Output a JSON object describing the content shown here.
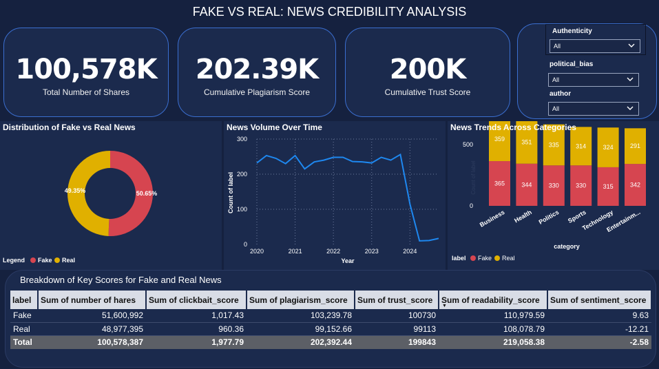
{
  "title": "FAKE VS REAL: NEWS CREDIBILITY ANALYSIS",
  "kpis": [
    {
      "value": "100,578K",
      "label": "Total Number of Shares"
    },
    {
      "value": "202.39K",
      "label": "Cumulative Plagiarism Score"
    },
    {
      "value": "200K",
      "label": "Cumulative Trust Score"
    }
  ],
  "filters": [
    {
      "label": "Authenticity",
      "value": "All"
    },
    {
      "label": "political_bias",
      "value": "All"
    },
    {
      "label": "author",
      "value": "All"
    }
  ],
  "colors": {
    "fake": "#d64550",
    "real": "#e0b000",
    "line": "#1e88f0",
    "background": "#15213f",
    "panel": "#1b2a4d"
  },
  "donut": {
    "title": "Distribution of Fake vs Real News",
    "legend_title": "Legend",
    "chart_data": {
      "type": "pie",
      "slices": [
        {
          "name": "Fake",
          "value": 50.65,
          "label": "50.65%"
        },
        {
          "name": "Real",
          "value": 49.35,
          "label": "49.35%"
        }
      ]
    }
  },
  "line_chart": {
    "title": "News Volume Over Time",
    "chart_data": {
      "type": "line",
      "xlabel": "Year",
      "ylabel": "Count of label",
      "x_ticks": [
        "2020",
        "2021",
        "2022",
        "2023",
        "2024"
      ],
      "y_ticks": [
        0,
        100,
        200,
        300
      ],
      "ylim": [
        0,
        300
      ],
      "xlim": [
        2020,
        2024.75
      ],
      "grid": true,
      "x": [
        2020.0,
        2020.25,
        2020.5,
        2020.75,
        2021.0,
        2021.25,
        2021.5,
        2021.75,
        2022.0,
        2022.25,
        2022.5,
        2022.75,
        2023.0,
        2023.25,
        2023.5,
        2023.75,
        2024.0,
        2024.25,
        2024.5,
        2024.75
      ],
      "values": [
        232,
        253,
        245,
        230,
        253,
        215,
        235,
        240,
        248,
        248,
        236,
        235,
        232,
        248,
        240,
        256,
        115,
        10,
        11,
        17
      ]
    }
  },
  "bar_chart": {
    "title": "News Trends Across Categories",
    "legend_title": "label",
    "chart_data": {
      "type": "bar",
      "stacked": true,
      "xlabel": "category",
      "ylabel": "Count of label",
      "y_ticks": [
        0,
        500
      ],
      "categories": [
        "Business",
        "Health",
        "Politics",
        "Sports",
        "Technology",
        "Entertainm..."
      ],
      "series": [
        {
          "name": "Fake",
          "values": [
            365,
            344,
            330,
            330,
            315,
            342
          ]
        },
        {
          "name": "Real",
          "values": [
            359,
            351,
            335,
            314,
            324,
            291
          ]
        }
      ]
    }
  },
  "table": {
    "title": "Breakdown of Key Scores for Fake and Real News",
    "columns": [
      "label",
      "Sum of number of hares",
      "Sum of clickbait_score",
      "Sum of plagiarism_score",
      "Sum of trust_score",
      "Sum of readability_score",
      "Sum of sentiment_score"
    ],
    "rows": [
      [
        "Fake",
        "51,600,992",
        "1,017.43",
        "103,239.78",
        "100730",
        "110,979.59",
        "9.63"
      ],
      [
        "Real",
        "48,977,395",
        "960.36",
        "99,152.66",
        "99113",
        "108,078.79",
        "-12.21"
      ]
    ],
    "total": [
      "Total",
      "100,578,387",
      "1,977.79",
      "202,392.44",
      "199843",
      "219,058.38",
      "-2.58"
    ]
  }
}
